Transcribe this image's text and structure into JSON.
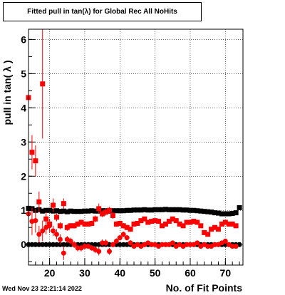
{
  "chart_data": {
    "type": "scatter",
    "title": "Fitted pull in tan(λ) for Global Rec All NoHits",
    "xlabel": "No. of Fit Points",
    "ylabel": "pull in tan( λ )",
    "xlim": [
      14,
      75
    ],
    "ylim": [
      -0.6,
      6.3
    ],
    "x_ticks": [
      20,
      30,
      40,
      50,
      60,
      70
    ],
    "y_ticks": [
      0,
      1,
      2,
      3,
      4,
      5,
      6
    ],
    "grid": true,
    "legend": "none",
    "series": [
      {
        "marker": "square",
        "color": "#000000",
        "points": [
          [
            14,
            1.06
          ],
          [
            15,
            1.05
          ],
          [
            16,
            1.0
          ],
          [
            17,
            1.02
          ],
          [
            18,
            0.98
          ],
          [
            19,
            1.0
          ],
          [
            20,
            1.0
          ],
          [
            21,
            0.98
          ],
          [
            22,
            0.99
          ],
          [
            23,
            0.97
          ],
          [
            24,
            0.98
          ],
          [
            25,
            0.96
          ],
          [
            26,
            0.98
          ],
          [
            27,
            0.97
          ],
          [
            28,
            0.97
          ],
          [
            29,
            0.97
          ],
          [
            30,
            0.98
          ],
          [
            31,
            0.98
          ],
          [
            32,
            0.99
          ],
          [
            33,
            0.98
          ],
          [
            34,
            0.98
          ],
          [
            35,
            0.99
          ],
          [
            36,
            0.99
          ],
          [
            37,
            0.98
          ],
          [
            38,
            0.99
          ],
          [
            39,
            0.99
          ],
          [
            40,
            0.99
          ],
          [
            41,
            0.99
          ],
          [
            42,
            1.0
          ],
          [
            43,
            1.0
          ],
          [
            44,
            1.01
          ],
          [
            45,
            1.01
          ],
          [
            46,
            1.01
          ],
          [
            47,
            1.02
          ],
          [
            48,
            1.01
          ],
          [
            49,
            1.01
          ],
          [
            50,
            1.02
          ],
          [
            51,
            1.02
          ],
          [
            52,
            1.02
          ],
          [
            53,
            1.03
          ],
          [
            54,
            1.02
          ],
          [
            55,
            1.02
          ],
          [
            56,
            1.02
          ],
          [
            57,
            1.02
          ],
          [
            58,
            1.01
          ],
          [
            59,
            1.01
          ],
          [
            60,
            1.0
          ],
          [
            61,
            1.0
          ],
          [
            62,
            0.99
          ],
          [
            63,
            0.98
          ],
          [
            64,
            0.97
          ],
          [
            65,
            0.96
          ],
          [
            66,
            0.95
          ],
          [
            67,
            0.93
          ],
          [
            68,
            0.92
          ],
          [
            69,
            0.9
          ],
          [
            70,
            0.9
          ],
          [
            71,
            0.9
          ],
          [
            72,
            0.91
          ],
          [
            73,
            0.93
          ],
          [
            74,
            1.08
          ]
        ],
        "errors": []
      },
      {
        "marker": "circle",
        "color": "#000000",
        "points": [
          [
            14,
            0.0
          ],
          [
            15,
            0.0
          ],
          [
            16,
            0.0
          ],
          [
            17,
            0.0
          ],
          [
            18,
            0.0
          ],
          [
            19,
            0.0
          ],
          [
            20,
            0.0
          ],
          [
            21,
            0.0
          ],
          [
            22,
            0.0
          ],
          [
            23,
            0.0
          ],
          [
            24,
            0.0
          ],
          [
            25,
            0.0
          ],
          [
            26,
            0.0
          ],
          [
            27,
            0.0
          ],
          [
            28,
            0.0
          ],
          [
            29,
            0.0
          ],
          [
            30,
            0.0
          ],
          [
            31,
            0.0
          ],
          [
            32,
            0.0
          ],
          [
            33,
            0.0
          ],
          [
            34,
            0.0
          ],
          [
            35,
            0.0
          ],
          [
            36,
            0.0
          ],
          [
            37,
            0.0
          ],
          [
            38,
            0.0
          ],
          [
            39,
            0.0
          ],
          [
            40,
            0.0
          ],
          [
            41,
            0.0
          ],
          [
            42,
            0.0
          ],
          [
            43,
            0.0
          ],
          [
            44,
            0.0
          ],
          [
            45,
            0.0
          ],
          [
            46,
            0.0
          ],
          [
            47,
            0.0
          ],
          [
            48,
            0.0
          ],
          [
            49,
            0.0
          ],
          [
            50,
            0.0
          ],
          [
            51,
            0.0
          ],
          [
            52,
            0.0
          ],
          [
            53,
            0.0
          ],
          [
            54,
            0.0
          ],
          [
            55,
            0.0
          ],
          [
            56,
            0.0
          ],
          [
            57,
            0.0
          ],
          [
            58,
            0.0
          ],
          [
            59,
            0.0
          ],
          [
            60,
            0.0
          ],
          [
            61,
            0.0
          ],
          [
            62,
            0.0
          ],
          [
            63,
            0.0
          ],
          [
            64,
            0.0
          ],
          [
            65,
            0.0
          ],
          [
            66,
            0.0
          ],
          [
            67,
            0.0
          ],
          [
            68,
            0.0
          ],
          [
            69,
            0.0
          ],
          [
            70,
            0.0
          ],
          [
            71,
            0.0
          ],
          [
            72,
            0.0
          ],
          [
            73,
            0.0
          ],
          [
            74,
            0.0
          ]
        ],
        "errors": []
      },
      {
        "marker": "square",
        "color": "#ff0000",
        "points": [
          [
            14,
            4.3
          ],
          [
            15,
            2.7
          ],
          [
            16,
            2.45
          ],
          [
            17,
            1.25
          ],
          [
            18,
            4.7
          ],
          [
            19,
            0.75
          ],
          [
            20,
            0.6
          ],
          [
            21,
            1.15
          ],
          [
            22,
            0.8
          ],
          [
            23,
            0.55
          ],
          [
            24,
            1.2
          ],
          [
            25,
            0.5
          ],
          [
            26,
            0.55
          ],
          [
            27,
            0.55
          ],
          [
            28,
            0.6
          ],
          [
            29,
            0.65
          ],
          [
            30,
            0.6
          ],
          [
            31,
            0.6
          ],
          [
            32,
            0.62
          ],
          [
            33,
            0.75
          ],
          [
            34,
            1.05
          ],
          [
            35,
            0.9
          ],
          [
            36,
            0.95
          ],
          [
            37,
            1.0
          ],
          [
            38,
            0.85
          ],
          [
            39,
            0.6
          ],
          [
            40,
            0.62
          ],
          [
            41,
            0.55
          ],
          [
            42,
            0.5
          ],
          [
            43,
            0.45
          ],
          [
            44,
            0.6
          ],
          [
            45,
            0.62
          ],
          [
            46,
            0.7
          ],
          [
            47,
            0.75
          ],
          [
            48,
            0.65
          ],
          [
            49,
            0.68
          ],
          [
            50,
            0.7
          ],
          [
            51,
            0.68
          ],
          [
            52,
            0.55
          ],
          [
            53,
            0.6
          ],
          [
            54,
            0.68
          ],
          [
            55,
            0.75
          ],
          [
            56,
            0.7
          ],
          [
            57,
            0.6
          ],
          [
            58,
            0.55
          ],
          [
            59,
            0.65
          ],
          [
            60,
            0.65
          ],
          [
            61,
            0.68
          ],
          [
            62,
            0.65
          ],
          [
            63,
            0.55
          ],
          [
            64,
            0.35
          ],
          [
            65,
            0.3
          ],
          [
            66,
            0.45
          ],
          [
            67,
            0.5
          ],
          [
            68,
            0.45
          ],
          [
            69,
            0.6
          ],
          [
            70,
            0.65
          ],
          [
            71,
            0.6
          ],
          [
            72,
            0.6
          ],
          [
            73,
            0.55
          ]
        ],
        "errors": [
          0.6,
          0.5,
          0.45,
          0.3,
          1.6,
          0.2,
          0.15,
          0.2,
          0.12,
          0.1,
          0.15,
          0.1,
          0.08,
          0.08,
          0.08,
          0.08,
          0.08,
          0.08,
          0.08,
          0.1,
          0.15,
          0.1,
          0.1,
          0.1,
          0.1,
          0.08,
          0.08,
          0.08,
          0.08,
          0.08,
          0.06,
          0.06,
          0.06,
          0.06,
          0.06,
          0.06,
          0.06,
          0.06,
          0.06,
          0.06,
          0.06,
          0.06,
          0.06,
          0.06,
          0.06,
          0.06,
          0.06,
          0.06,
          0.06,
          0.06,
          0.06,
          0.06,
          0.06,
          0.06,
          0.06,
          0.06,
          0.06,
          0.06,
          0.06,
          0.06
        ]
      },
      {
        "marker": "circle",
        "color": "#ff0000",
        "points": [
          [
            14,
            0.9
          ],
          [
            15,
            0.68
          ],
          [
            16,
            0.7
          ],
          [
            17,
            0.3
          ],
          [
            18,
            0.4
          ],
          [
            19,
            0.5
          ],
          [
            20,
            0.55
          ],
          [
            21,
            0.4
          ],
          [
            22,
            0.3
          ],
          [
            23,
            0.15
          ],
          [
            24,
            -0.25
          ],
          [
            25,
            0.15
          ],
          [
            26,
            0.1
          ],
          [
            27,
            0.0
          ],
          [
            28,
            -0.1
          ],
          [
            29,
            -0.1
          ],
          [
            30,
            -0.05
          ],
          [
            31,
            -0.05
          ],
          [
            32,
            -0.1
          ],
          [
            33,
            -0.15
          ],
          [
            34,
            -0.2
          ],
          [
            35,
            0.05
          ],
          [
            36,
            0.05
          ],
          [
            37,
            -0.2
          ],
          [
            38,
            0.0
          ],
          [
            39,
            0.1
          ],
          [
            40,
            0.2
          ],
          [
            41,
            0.3
          ],
          [
            42,
            0.2
          ],
          [
            43,
            0.05
          ],
          [
            44,
            -0.05
          ],
          [
            45,
            0.0
          ],
          [
            46,
            -0.05
          ],
          [
            47,
            0.0
          ],
          [
            48,
            0.05
          ],
          [
            49,
            0.0
          ],
          [
            50,
            0.0
          ],
          [
            51,
            -0.05
          ],
          [
            52,
            0.0
          ],
          [
            53,
            0.0
          ],
          [
            54,
            0.0
          ],
          [
            55,
            0.05
          ],
          [
            56,
            -0.05
          ],
          [
            57,
            0.0
          ],
          [
            58,
            -0.05
          ],
          [
            59,
            0.0
          ],
          [
            60,
            0.0
          ],
          [
            61,
            0.0
          ],
          [
            62,
            0.05
          ],
          [
            63,
            -0.05
          ],
          [
            64,
            0.0
          ],
          [
            65,
            -0.05
          ],
          [
            66,
            -0.05
          ],
          [
            67,
            0.0
          ],
          [
            68,
            0.0
          ],
          [
            69,
            0.05
          ],
          [
            70,
            0.1
          ],
          [
            71,
            0.0
          ],
          [
            72,
            -0.05
          ],
          [
            73,
            -0.05
          ]
        ],
        "errors": [
          0.5,
          0.4,
          0.35,
          0.25,
          0.3,
          0.2,
          0.2,
          0.15,
          0.15,
          0.15,
          0.2,
          0.1,
          0.1,
          0.1,
          0.1,
          0.1,
          0.08,
          0.08,
          0.08,
          0.1,
          0.12,
          0.1,
          0.1,
          0.1,
          0.08,
          0.08,
          0.08,
          0.08,
          0.08,
          0.08,
          0.06,
          0.06,
          0.06,
          0.06,
          0.06,
          0.06,
          0.06,
          0.06,
          0.06,
          0.06,
          0.06,
          0.06,
          0.06,
          0.06,
          0.06,
          0.06,
          0.06,
          0.06,
          0.06,
          0.06,
          0.06,
          0.06,
          0.06,
          0.06,
          0.06,
          0.06,
          0.06,
          0.06,
          0.06,
          0.06
        ]
      }
    ]
  },
  "footer": {
    "timestamp": "Wed Nov 23 22:21:14 2022"
  }
}
